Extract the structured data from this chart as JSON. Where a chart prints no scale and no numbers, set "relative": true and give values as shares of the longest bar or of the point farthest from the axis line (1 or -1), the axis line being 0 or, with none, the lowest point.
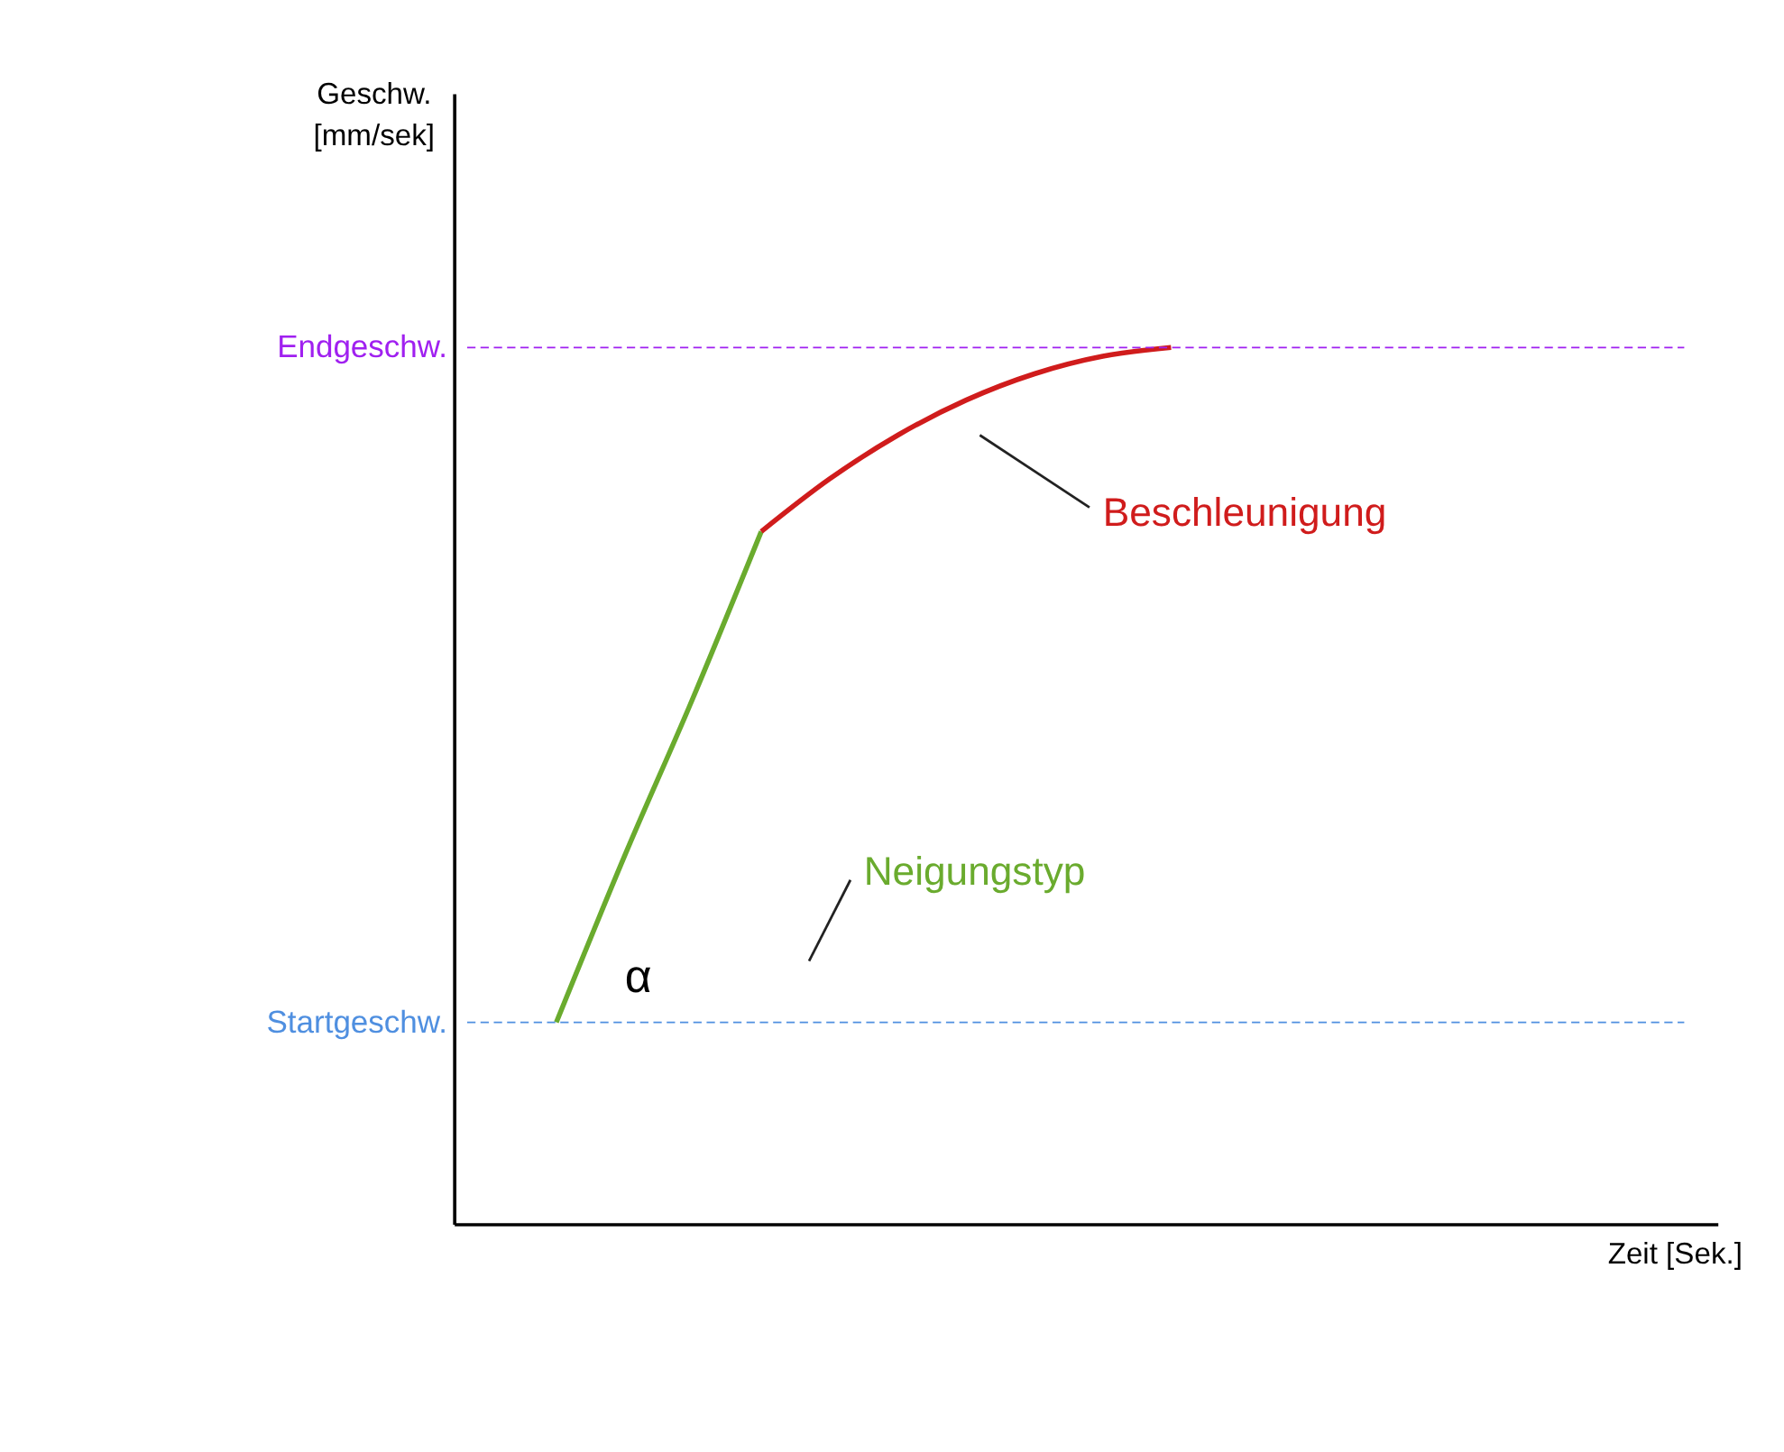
{
  "chart_data": {
    "type": "line",
    "relative": true,
    "tick_labels": false,
    "categories": [
      null,
      null,
      null,
      null,
      null,
      null,
      null,
      null,
      null,
      null
    ],
    "series": [
      {
        "color": "#6aab2e",
        "values": [
          0.23,
          0.42,
          0.6,
          0.79,
          null,
          null,
          null,
          null,
          null,
          null
        ]
      },
      {
        "color": "#d01c1c",
        "values": [
          null,
          null,
          null,
          0.79,
          0.85,
          0.9,
          0.94,
          0.97,
          0.99,
          1
        ]
      }
    ],
    "ref_lines": [
      {
        "axis": "y",
        "value": 1,
        "label": "Endgeschw.",
        "color": "#a020f0",
        "line_style": "dashed"
      },
      {
        "axis": "y",
        "value": 0.23,
        "label": "Startgeschw.",
        "color": "#4f8fe0",
        "line_style": "dashed"
      }
    ],
    "annotations": [
      "Beschleunigung",
      "Neigungstyp",
      "α",
      "Geschw. [mm/sek]",
      "Zeit [Sek.]"
    ]
  }
}
